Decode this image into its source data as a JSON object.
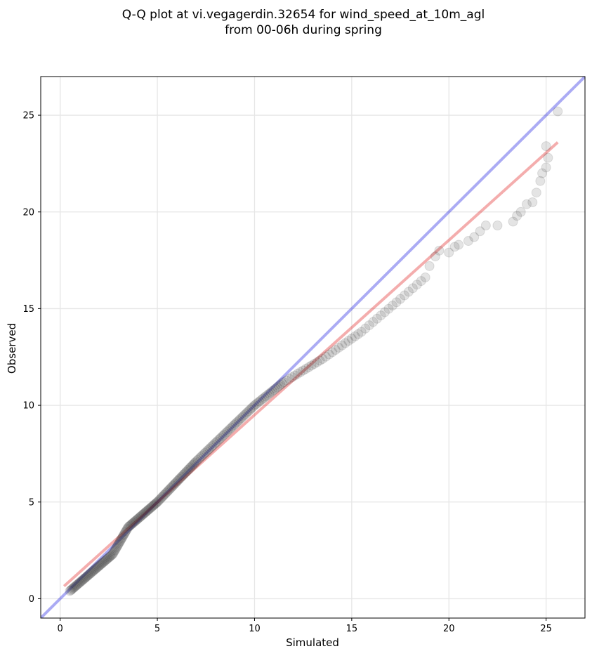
{
  "chart_data": {
    "type": "scatter",
    "title": [
      "Q-Q plot at vi.vegagerdin.32654 for wind_speed_at_10m_agl",
      "from 00-06h during spring"
    ],
    "xlabel": "Simulated",
    "ylabel": "Observed",
    "xlim": [
      -1,
      27
    ],
    "ylim": [
      -1,
      27
    ],
    "xticks": [
      0,
      5,
      10,
      15,
      20,
      25
    ],
    "yticks": [
      0,
      5,
      10,
      15,
      20,
      25
    ],
    "grid": true,
    "legend": "none",
    "colors": {
      "identity": "#0000dd",
      "fit": "#dd0000",
      "point": "#222222"
    },
    "lines": [
      {
        "role": "identity",
        "x": [
          -1,
          27
        ],
        "y": [
          -1,
          27
        ]
      },
      {
        "role": "fit",
        "x": [
          0.2,
          25.6
        ],
        "y": [
          0.65,
          23.6
        ]
      }
    ],
    "sections": [
      {
        "from": [
          0.5,
          0.4
        ],
        "to": [
          2.7,
          2.3
        ],
        "n": 45
      },
      {
        "from": [
          2.7,
          2.3
        ],
        "to": [
          3.5,
          3.7
        ],
        "n": 20
      },
      {
        "from": [
          3.5,
          3.7
        ],
        "to": [
          5.0,
          5.0
        ],
        "n": 30
      },
      {
        "from": [
          5.0,
          5.0
        ],
        "to": [
          7.0,
          7.1
        ],
        "n": 35
      },
      {
        "from": [
          7.0,
          7.1
        ],
        "to": [
          10.0,
          10.0
        ],
        "n": 40
      },
      {
        "from": [
          10.0,
          10.0
        ],
        "to": [
          11.5,
          11.2
        ],
        "n": 18
      },
      {
        "from": [
          11.5,
          11.2
        ],
        "to": [
          13.5,
          12.4
        ],
        "n": 14
      },
      {
        "from": [
          13.5,
          12.4
        ],
        "to": [
          15.5,
          13.8
        ],
        "n": 12
      },
      {
        "from": [
          15.5,
          13.8
        ],
        "to": [
          17.5,
          15.5
        ],
        "n": 10
      },
      {
        "from": [
          17.5,
          15.5
        ],
        "to": [
          19.0,
          16.8
        ],
        "n": 7
      }
    ],
    "tail_points": [
      [
        19.0,
        17.2
      ],
      [
        19.3,
        17.7
      ],
      [
        19.5,
        18.0
      ],
      [
        20.0,
        17.9
      ],
      [
        20.3,
        18.2
      ],
      [
        20.5,
        18.3
      ],
      [
        21.0,
        18.5
      ],
      [
        21.3,
        18.7
      ],
      [
        21.6,
        19.0
      ],
      [
        21.9,
        19.3
      ],
      [
        22.5,
        19.3
      ],
      [
        23.3,
        19.5
      ],
      [
        23.5,
        19.8
      ],
      [
        23.7,
        20.0
      ],
      [
        24.0,
        20.4
      ],
      [
        24.3,
        20.5
      ],
      [
        24.5,
        21.0
      ],
      [
        24.7,
        21.6
      ],
      [
        24.8,
        22.0
      ],
      [
        25.0,
        22.3
      ],
      [
        25.1,
        22.8
      ],
      [
        25.0,
        23.4
      ],
      [
        25.6,
        25.2
      ]
    ]
  }
}
